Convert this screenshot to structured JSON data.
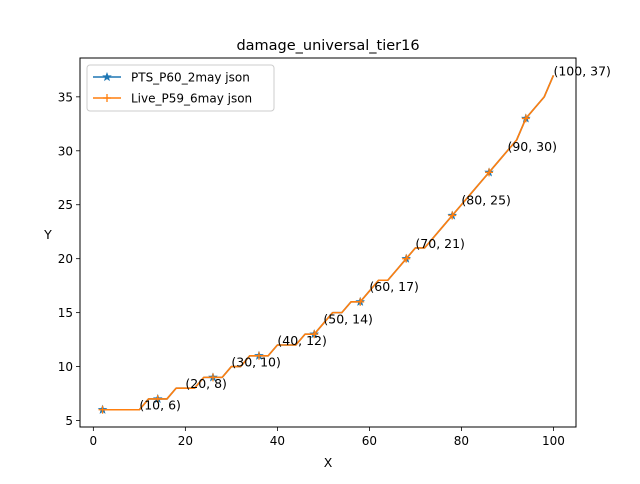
{
  "chart_data": {
    "type": "line",
    "title": "damage_universal_tier16",
    "xlabel": "X",
    "ylabel": "Y",
    "xlim": [
      -2.9,
      104.9
    ],
    "ylim": [
      4.4,
      38.6
    ],
    "xticks": [
      0,
      20,
      40,
      60,
      80,
      100
    ],
    "yticks": [
      5,
      10,
      15,
      20,
      25,
      30,
      35
    ],
    "legend_position": "upper left",
    "grid": false,
    "series": [
      {
        "name": "PTS_P60_2may json",
        "color": "#1f77b4",
        "marker": "star",
        "x": [
          2,
          4,
          6,
          8,
          10,
          12,
          14,
          16,
          18,
          20,
          22,
          24,
          26,
          28,
          30,
          32,
          34,
          36,
          38,
          40,
          42,
          44,
          46,
          48,
          50,
          52,
          54,
          56,
          58,
          60,
          62,
          64,
          66,
          68,
          70,
          72,
          74,
          76,
          78,
          80,
          82,
          84,
          86,
          88,
          90,
          92,
          94,
          96,
          98,
          100
        ],
        "y": [
          6,
          6,
          6,
          6,
          6,
          7,
          7,
          7,
          8,
          8,
          8,
          9,
          9,
          9,
          10,
          10,
          11,
          11,
          11,
          12,
          12,
          12,
          13,
          13,
          14,
          15,
          15,
          16,
          16,
          17,
          18,
          18,
          19,
          20,
          21,
          21,
          22,
          23,
          24,
          25,
          26,
          27,
          28,
          29,
          30,
          31,
          33,
          34,
          35,
          37
        ]
      },
      {
        "name": "Live_P59_6may json",
        "color": "#ff7f0e",
        "marker": "plus",
        "x": [
          2,
          4,
          6,
          8,
          10,
          12,
          14,
          16,
          18,
          20,
          22,
          24,
          26,
          28,
          30,
          32,
          34,
          36,
          38,
          40,
          42,
          44,
          46,
          48,
          50,
          52,
          54,
          56,
          58,
          60,
          62,
          64,
          66,
          68,
          70,
          72,
          74,
          76,
          78,
          80,
          82,
          84,
          86,
          88,
          90,
          92,
          94,
          96,
          98,
          100
        ],
        "y": [
          6,
          6,
          6,
          6,
          6,
          7,
          7,
          7,
          8,
          8,
          8,
          9,
          9,
          9,
          10,
          10,
          11,
          11,
          11,
          12,
          12,
          12,
          13,
          13,
          14,
          15,
          15,
          16,
          16,
          17,
          18,
          18,
          19,
          20,
          21,
          21,
          22,
          23,
          24,
          25,
          26,
          27,
          28,
          29,
          30,
          31,
          33,
          34,
          35,
          37
        ]
      }
    ],
    "marker_x": [
      2,
      14,
      26,
      36,
      48,
      58,
      68,
      78,
      86,
      94
    ],
    "annotations": [
      {
        "x": 10,
        "y": 6,
        "text": "(10, 6)"
      },
      {
        "x": 20,
        "y": 8,
        "text": "(20, 8)"
      },
      {
        "x": 30,
        "y": 10,
        "text": "(30, 10)"
      },
      {
        "x": 40,
        "y": 12,
        "text": "(40, 12)"
      },
      {
        "x": 50,
        "y": 14,
        "text": "(50, 14)"
      },
      {
        "x": 60,
        "y": 17,
        "text": "(60, 17)"
      },
      {
        "x": 70,
        "y": 21,
        "text": "(70, 21)"
      },
      {
        "x": 80,
        "y": 25,
        "text": "(80, 25)"
      },
      {
        "x": 90,
        "y": 30,
        "text": "(90, 30)"
      },
      {
        "x": 100,
        "y": 37,
        "text": "(100, 37)"
      }
    ]
  }
}
